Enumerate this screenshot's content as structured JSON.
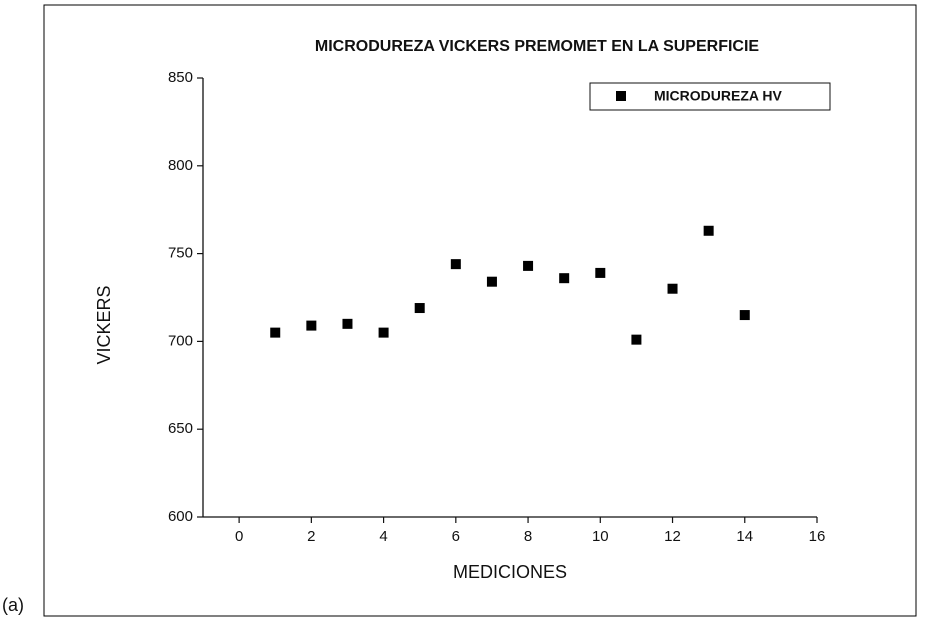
{
  "caption": "(a)",
  "chart_data": {
    "type": "scatter",
    "title": "MICRODUREZA VICKERS PREMOMET EN LA SUPERFICIE",
    "x_label": "MEDICIONES",
    "y_label": "VICKERS",
    "series": [
      {
        "name": "MICRODUREZA HV",
        "color": "#000000",
        "x": [
          1,
          2,
          3,
          4,
          5,
          6,
          7,
          8,
          9,
          10,
          11,
          12,
          13,
          14
        ],
        "values": [
          705,
          709,
          710,
          705,
          719,
          744,
          734,
          743,
          736,
          739,
          701,
          730,
          763,
          715
        ]
      }
    ],
    "xlim": [
      -1,
      16
    ],
    "xticks": [
      0,
      2,
      4,
      6,
      8,
      10,
      12,
      14,
      16
    ],
    "ylim": [
      600,
      850
    ],
    "yticks": [
      600,
      650,
      700,
      750,
      800,
      850
    ],
    "legend": "top-right"
  }
}
